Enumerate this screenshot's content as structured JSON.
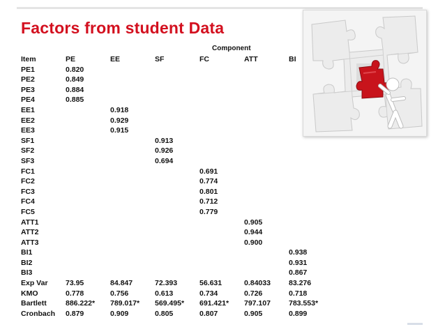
{
  "slide": {
    "title": "Factors from student Data"
  },
  "table": {
    "component_header": "Component",
    "columns": [
      "Item",
      "PE",
      "EE",
      "SF",
      "FC",
      "ATT",
      "BI"
    ],
    "rows": [
      [
        "PE1",
        "0.820",
        "",
        "",
        "",
        "",
        ""
      ],
      [
        "PE2",
        "0.849",
        "",
        "",
        "",
        "",
        ""
      ],
      [
        "PE3",
        "0.884",
        "",
        "",
        "",
        "",
        ""
      ],
      [
        "PE4",
        "0.885",
        "",
        "",
        "",
        "",
        ""
      ],
      [
        "EE1",
        "",
        "0.918",
        "",
        "",
        "",
        ""
      ],
      [
        "EE2",
        "",
        "0.929",
        "",
        "",
        "",
        ""
      ],
      [
        "EE3",
        "",
        "0.915",
        "",
        "",
        "",
        ""
      ],
      [
        "SF1",
        "",
        "",
        "0.913",
        "",
        "",
        ""
      ],
      [
        "SF2",
        "",
        "",
        "0.926",
        "",
        "",
        ""
      ],
      [
        "SF3",
        "",
        "",
        "0.694",
        "",
        "",
        ""
      ],
      [
        "FC1",
        "",
        "",
        "",
        "0.691",
        "",
        ""
      ],
      [
        "FC2",
        "",
        "",
        "",
        "0.774",
        "",
        ""
      ],
      [
        "FC3",
        "",
        "",
        "",
        "0.801",
        "",
        ""
      ],
      [
        "FC4",
        "",
        "",
        "",
        "0.712",
        "",
        ""
      ],
      [
        "FC5",
        "",
        "",
        "",
        "0.779",
        "",
        ""
      ],
      [
        "ATT1",
        "",
        "",
        "",
        "",
        "0.905",
        ""
      ],
      [
        "ATT2",
        "",
        "",
        "",
        "",
        "0.944",
        ""
      ],
      [
        "ATT3",
        "",
        "",
        "",
        "",
        "0.900",
        ""
      ],
      [
        "BI1",
        "",
        "",
        "",
        "",
        "",
        "0.938"
      ],
      [
        "BI2",
        "",
        "",
        "",
        "",
        "",
        "0.931"
      ],
      [
        "BI3",
        "",
        "",
        "",
        "",
        "",
        "0.867"
      ],
      [
        "Exp Var",
        "73.95",
        "84.847",
        "72.393",
        "56.631",
        "0.84033",
        "83.276"
      ],
      [
        "KMO",
        "0.778",
        "0.756",
        "0.613",
        "0.734",
        "0.726",
        "0.718"
      ],
      [
        "Bartlett",
        "886.222*",
        "789.017*",
        "569.495*",
        "691.421*",
        "797.107",
        "783.553*"
      ],
      [
        "Cronbach",
        "0.879",
        "0.909",
        "0.805",
        "0.807",
        "0.905",
        "0.899"
      ]
    ]
  },
  "image": {
    "icon": "puzzle-figure-icon",
    "colors": {
      "piece": "#c8141c",
      "grid": "#e9e9e9",
      "figure": "#ffffff"
    }
  },
  "theme": {
    "title_color": "#d3101f"
  }
}
